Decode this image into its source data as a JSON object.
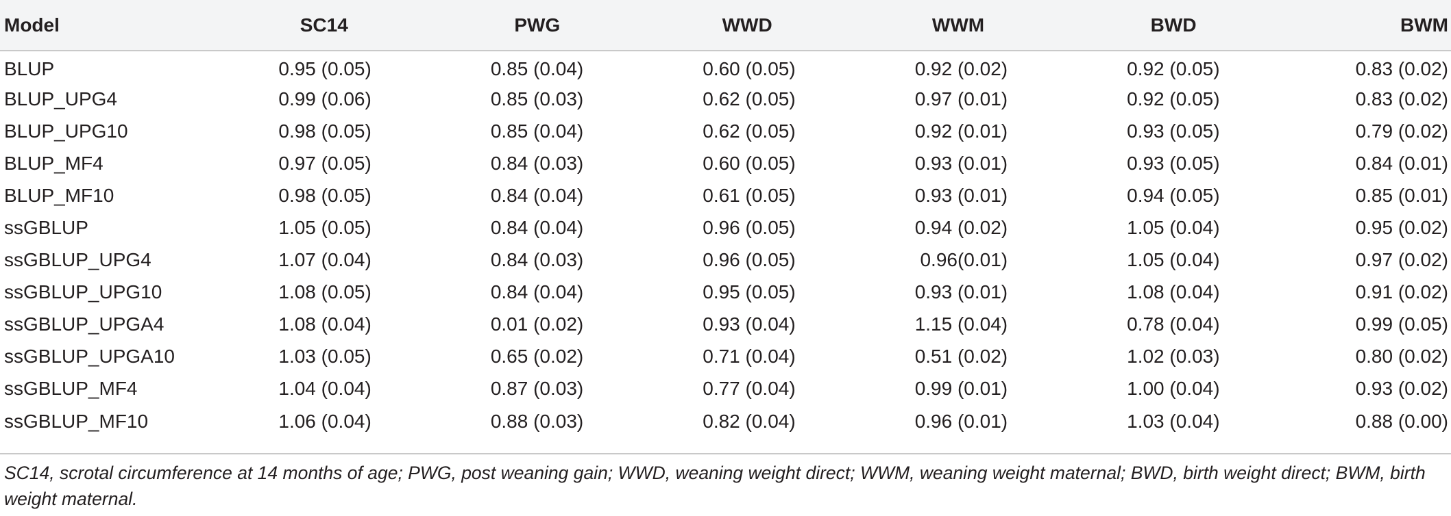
{
  "table": {
    "headers": [
      "Model",
      "SC14",
      "PWG",
      "WWD",
      "WWM",
      "BWD",
      "BWM"
    ],
    "rows": [
      [
        "BLUP",
        "0.95 (0.05)",
        "0.85 (0.04)",
        "0.60 (0.05)",
        "0.92 (0.02)",
        "0.92 (0.05)",
        "0.83 (0.02)"
      ],
      [
        "BLUP_UPG4",
        "0.99 (0.06)",
        "0.85 (0.03)",
        "0.62 (0.05)",
        "0.97 (0.01)",
        "0.92 (0.05)",
        "0.83 (0.02)"
      ],
      [
        "BLUP_UPG10",
        "0.98 (0.05)",
        "0.85 (0.04)",
        "0.62 (0.05)",
        "0.92 (0.01)",
        "0.93 (0.05)",
        "0.79 (0.02)"
      ],
      [
        "BLUP_MF4",
        "0.97 (0.05)",
        "0.84 (0.03)",
        "0.60 (0.05)",
        "0.93 (0.01)",
        "0.93 (0.05)",
        "0.84 (0.01)"
      ],
      [
        "BLUP_MF10",
        "0.98 (0.05)",
        "0.84 (0.04)",
        "0.61 (0.05)",
        "0.93 (0.01)",
        "0.94 (0.05)",
        "0.85 (0.01)"
      ],
      [
        "ssGBLUP",
        "1.05 (0.05)",
        "0.84 (0.04)",
        "0.96 (0.05)",
        "0.94 (0.02)",
        "1.05 (0.04)",
        "0.95 (0.02)"
      ],
      [
        "ssGBLUP_UPG4",
        "1.07 (0.04)",
        "0.84 (0.03)",
        "0.96 (0.05)",
        "0.96(0.01)",
        "1.05 (0.04)",
        "0.97 (0.02)"
      ],
      [
        "ssGBLUP_UPG10",
        "1.08 (0.05)",
        "0.84 (0.04)",
        "0.95 (0.05)",
        "0.93 (0.01)",
        "1.08 (0.04)",
        "0.91 (0.02)"
      ],
      [
        "ssGBLUP_UPGA4",
        "1.08 (0.04)",
        "0.01 (0.02)",
        "0.93 (0.04)",
        "1.15 (0.04)",
        "0.78 (0.04)",
        "0.99 (0.05)"
      ],
      [
        "ssGBLUP_UPGA10",
        "1.03 (0.05)",
        "0.65 (0.02)",
        "0.71 (0.04)",
        "0.51 (0.02)",
        "1.02 (0.03)",
        "0.80 (0.02)"
      ],
      [
        "ssGBLUP_MF4",
        "1.04 (0.04)",
        "0.87 (0.03)",
        "0.77 (0.04)",
        "0.99 (0.01)",
        "1.00 (0.04)",
        "0.93 (0.02)"
      ],
      [
        "ssGBLUP_MF10",
        "1.06 (0.04)",
        "0.88 (0.03)",
        "0.82 (0.04)",
        "0.96 (0.01)",
        "1.03 (0.04)",
        "0.88 (0.00)"
      ]
    ]
  },
  "footnote": "SC14, scrotal circumference at 14 months of age; PWG, post weaning gain; WWD, weaning weight direct; WWM, weaning weight maternal; BWD, birth weight direct; BWM, birth weight maternal.",
  "colors": {
    "header_bg": "#f3f4f5",
    "text": "#231f20",
    "rule": "#c9c9c9"
  }
}
